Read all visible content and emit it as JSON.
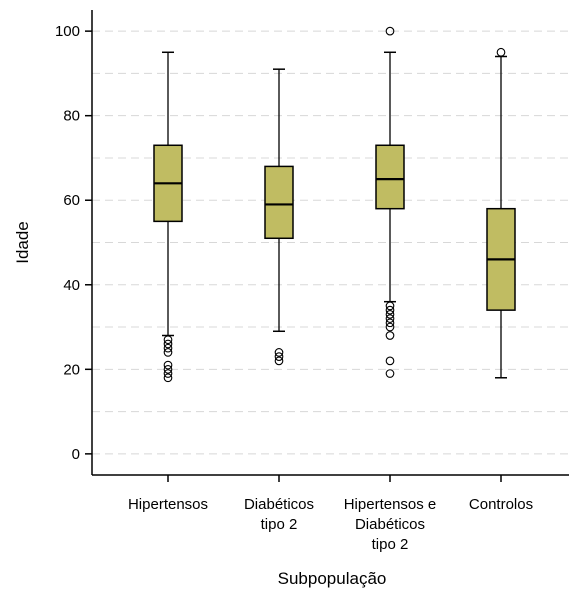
{
  "chart_data": {
    "type": "boxplot",
    "xlabel": "Subpopulação",
    "ylabel": "Idade",
    "ylim": [
      -5,
      105
    ],
    "yticks": [
      0,
      20,
      40,
      60,
      80,
      100
    ],
    "grid": true,
    "grid_style": "dashed",
    "box_color": "#c0bc62",
    "box_stroke": "#000000",
    "categories": [
      {
        "lines": [
          "Hipertensos"
        ]
      },
      {
        "lines": [
          "Diabéticos",
          "tipo 2"
        ]
      },
      {
        "lines": [
          "Hipertensos e",
          "Diabéticos",
          "tipo 2"
        ]
      },
      {
        "lines": [
          "Controlos"
        ]
      }
    ],
    "boxes": [
      {
        "whisker_low": 28,
        "q1": 55,
        "median": 64,
        "q3": 73,
        "whisker_high": 95,
        "outliers": [
          18,
          19,
          20,
          21,
          24,
          25,
          26,
          27
        ]
      },
      {
        "whisker_low": 29,
        "q1": 51,
        "median": 59,
        "q3": 68,
        "whisker_high": 91,
        "outliers": [
          22,
          23,
          24
        ]
      },
      {
        "whisker_low": 36,
        "q1": 58,
        "median": 65,
        "q3": 73,
        "whisker_high": 95,
        "outliers": [
          19,
          22,
          28,
          30,
          31,
          32,
          33,
          34,
          35,
          100
        ]
      },
      {
        "whisker_low": 18,
        "q1": 34,
        "median": 46,
        "q3": 58,
        "whisker_high": 94,
        "outliers": [
          95
        ]
      }
    ]
  }
}
